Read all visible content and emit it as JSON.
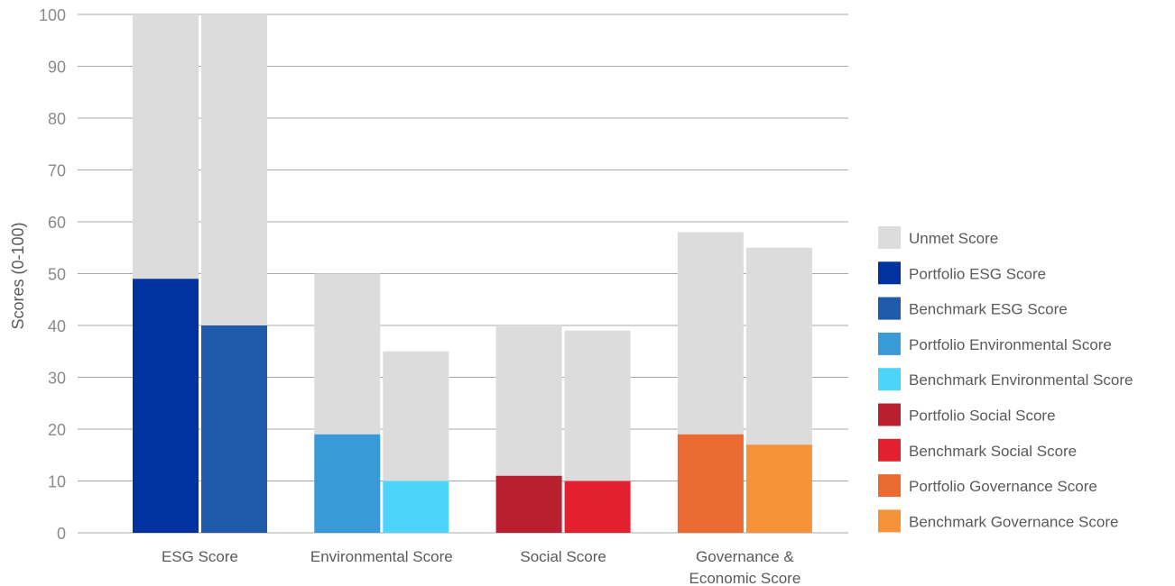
{
  "chart_data": {
    "type": "bar",
    "stacked": true,
    "ylabel": "Scores (0-100)",
    "ylim": [
      0,
      100
    ],
    "yticks": [
      0,
      10,
      20,
      30,
      40,
      50,
      60,
      70,
      80,
      90,
      100
    ],
    "grid": true,
    "legend_position": "right",
    "categories": [
      {
        "label_lines": [
          "ESG Score"
        ]
      },
      {
        "label_lines": [
          "Environmental Score"
        ]
      },
      {
        "label_lines": [
          "Social Score"
        ]
      },
      {
        "label_lines": [
          "Governance &",
          "Economic Score"
        ]
      }
    ],
    "bars": [
      {
        "category": 0,
        "series": "Portfolio ESG Score",
        "value": 49,
        "total": 100
      },
      {
        "category": 0,
        "series": "Benchmark ESG Score",
        "value": 40,
        "total": 100
      },
      {
        "category": 1,
        "series": "Portfolio Environmental Score",
        "value": 19,
        "total": 50
      },
      {
        "category": 1,
        "series": "Benchmark Environmental Score",
        "value": 10,
        "total": 35
      },
      {
        "category": 2,
        "series": "Portfolio Social Score",
        "value": 11,
        "total": 40
      },
      {
        "category": 2,
        "series": "Benchmark Social Score",
        "value": 10,
        "total": 39
      },
      {
        "category": 3,
        "series": "Portfolio Governance Score",
        "value": 19,
        "total": 58
      },
      {
        "category": 3,
        "series": "Benchmark Governance Score",
        "value": 17,
        "total": 55
      }
    ],
    "legend": [
      {
        "name": "Unmet Score",
        "color": "#dcdcdc"
      },
      {
        "name": "Portfolio ESG Score",
        "color": "#0033a0"
      },
      {
        "name": "Benchmark ESG Score",
        "color": "#1f5aab"
      },
      {
        "name": "Portfolio Environmental Score",
        "color": "#3a9ad8"
      },
      {
        "name": "Benchmark Environmental Score",
        "color": "#4dd4fb"
      },
      {
        "name": "Portfolio Social Score",
        "color": "#b91f2f"
      },
      {
        "name": "Benchmark Social Score",
        "color": "#e2202e"
      },
      {
        "name": "Portfolio Governance Score",
        "color": "#ea6a32"
      },
      {
        "name": "Benchmark Governance Score",
        "color": "#f6923a"
      }
    ]
  }
}
